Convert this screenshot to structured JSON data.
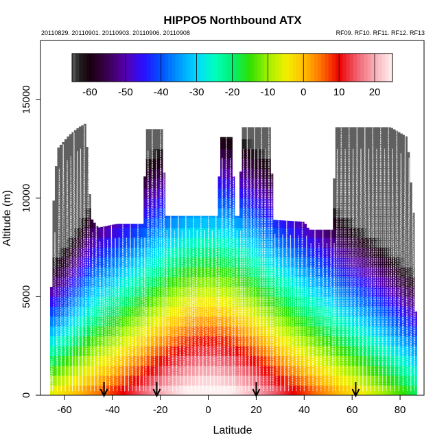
{
  "chart_data": {
    "type": "heatmap",
    "title": "HIPPO5 Northbound ATX",
    "subtitle_left": "20110829. 20110901. 20110903. 20110906. 20110908",
    "subtitle_right": "RF09. RF10. RF11. RF12. RF13",
    "xlabel": "Latitude",
    "ylabel": "Altitude (m)",
    "xlim": [
      -70,
      90
    ],
    "ylim": [
      0,
      18000
    ],
    "x_ticks": [
      -60,
      -40,
      -20,
      0,
      20,
      40,
      60,
      80
    ],
    "y_ticks": [
      0,
      5000,
      10000,
      15000
    ],
    "x_tick_labels": [
      "-60",
      "-40",
      "-20",
      "0",
      "20",
      "40",
      "60",
      "80"
    ],
    "y_tick_labels": [
      "0",
      "5000",
      "10000",
      "15000"
    ],
    "colorbar": {
      "range": [
        -65,
        25
      ],
      "ticks": [
        -60,
        -50,
        -40,
        -30,
        -20,
        -10,
        0,
        10,
        20
      ],
      "tick_labels": [
        "-60",
        "-50",
        "-40",
        "-30",
        "-20",
        "-10",
        "0",
        "10",
        "20"
      ],
      "stops": [
        {
          "v": -65,
          "c": "#606060"
        },
        {
          "v": -63,
          "c": "#202020"
        },
        {
          "v": -60,
          "c": "#1a0010"
        },
        {
          "v": -55,
          "c": "#3a0050"
        },
        {
          "v": -50,
          "c": "#5500b0"
        },
        {
          "v": -45,
          "c": "#2a10ff"
        },
        {
          "v": -40,
          "c": "#0050ff"
        },
        {
          "v": -35,
          "c": "#0099ff"
        },
        {
          "v": -30,
          "c": "#00d8ff"
        },
        {
          "v": -25,
          "c": "#00ffc0"
        },
        {
          "v": -20,
          "c": "#00f070"
        },
        {
          "v": -15,
          "c": "#30e000"
        },
        {
          "v": -10,
          "c": "#a0f000"
        },
        {
          "v": -5,
          "c": "#f0f000"
        },
        {
          "v": 0,
          "c": "#ffc000"
        },
        {
          "v": 5,
          "c": "#ff7000"
        },
        {
          "v": 10,
          "c": "#ee0000"
        },
        {
          "v": 15,
          "c": "#f06070"
        },
        {
          "v": 20,
          "c": "#f8b0b8"
        },
        {
          "v": 25,
          "c": "#fff0f0"
        }
      ]
    },
    "legend": "colorbar top-center",
    "profile_tops": [
      {
        "lat": -66,
        "alt": 2000
      },
      {
        "lat": -65,
        "alt": 9000
      },
      {
        "lat": -63,
        "alt": 12500
      },
      {
        "lat": -58,
        "alt": 13200
      },
      {
        "lat": -54,
        "alt": 13600
      },
      {
        "lat": -51,
        "alt": 13800
      },
      {
        "lat": -49,
        "alt": 9000
      },
      {
        "lat": -46,
        "alt": 8500
      },
      {
        "lat": -38,
        "alt": 8700
      },
      {
        "lat": -27,
        "alt": 8700
      },
      {
        "lat": -26,
        "alt": 13500
      },
      {
        "lat": -19,
        "alt": 13500
      },
      {
        "lat": -18,
        "alt": 9100
      },
      {
        "lat": 4,
        "alt": 9100
      },
      {
        "lat": 5,
        "alt": 13100
      },
      {
        "lat": 10,
        "alt": 13100
      },
      {
        "lat": 11,
        "alt": 9100
      },
      {
        "lat": 13,
        "alt": 9100
      },
      {
        "lat": 14,
        "alt": 13600
      },
      {
        "lat": 26,
        "alt": 13600
      },
      {
        "lat": 27,
        "alt": 8900
      },
      {
        "lat": 40,
        "alt": 8800
      },
      {
        "lat": 42,
        "alt": 8400
      },
      {
        "lat": 52,
        "alt": 8400
      },
      {
        "lat": 53,
        "alt": 13600
      },
      {
        "lat": 76,
        "alt": 13600
      },
      {
        "lat": 83,
        "alt": 13100
      },
      {
        "lat": 86,
        "alt": 8500
      },
      {
        "lat": 87,
        "alt": 0
      }
    ],
    "profiles_white_lines": true,
    "flight_break_arrows_lat": [
      -43.5,
      -21.5,
      20.0,
      61.5
    ]
  }
}
